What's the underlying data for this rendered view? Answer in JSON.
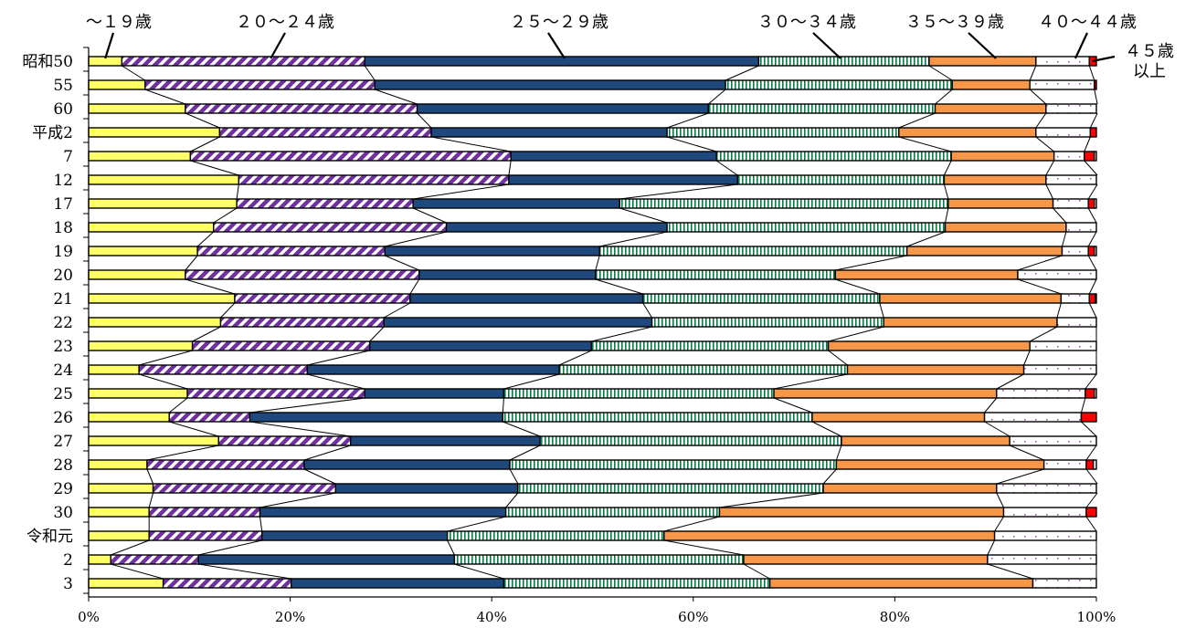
{
  "chart_data": {
    "type": "bar",
    "orientation": "horizontal",
    "stacked": "percent",
    "categories": [
      "昭和50",
      "55",
      "60",
      "平成2",
      "7",
      "12",
      "17",
      "18",
      "19",
      "20",
      "21",
      "22",
      "23",
      "24",
      "25",
      "26",
      "27",
      "28",
      "29",
      "30",
      "令和元",
      "2",
      "3"
    ],
    "series": [
      {
        "name": "～１９歳",
        "color": "#ffff66",
        "pattern": "solid",
        "values": [
          3.3,
          5.6,
          9.6,
          13.0,
          10.1,
          14.9,
          14.7,
          12.4,
          10.8,
          9.6,
          14.5,
          13.1,
          10.3,
          5.0,
          9.8,
          8.0,
          12.9,
          5.8,
          6.4,
          6.0,
          6.0,
          2.2,
          7.4
        ]
      },
      {
        "name": "２０～２４歳",
        "color": "#7030a0",
        "pattern": "diagonal-stripes",
        "values": [
          24.1,
          22.8,
          23.0,
          21.0,
          31.8,
          26.8,
          17.5,
          23.1,
          18.6,
          23.2,
          17.4,
          16.2,
          17.6,
          16.7,
          17.6,
          8.0,
          13.1,
          15.6,
          18.1,
          11.0,
          11.2,
          8.7,
          12.7
        ]
      },
      {
        "name": "２５～２９歳",
        "color": "#1f497d",
        "pattern": "solid",
        "values": [
          39.1,
          34.8,
          28.9,
          23.4,
          20.4,
          22.7,
          20.5,
          21.9,
          21.3,
          17.5,
          23.1,
          26.6,
          22.0,
          25.0,
          13.8,
          25.1,
          18.8,
          20.4,
          18.1,
          24.4,
          18.4,
          25.4,
          21.1
        ]
      },
      {
        "name": "３０～３４歳",
        "color": "#008040",
        "pattern": "vertical-stripes",
        "values": [
          16.9,
          22.5,
          22.5,
          23.0,
          23.3,
          20.5,
          32.6,
          27.6,
          30.5,
          23.8,
          23.5,
          23.0,
          23.5,
          28.6,
          26.8,
          30.7,
          29.9,
          32.4,
          30.3,
          21.2,
          21.5,
          28.7,
          26.4
        ]
      },
      {
        "name": "３５～３９歳",
        "color": "#f79646",
        "pattern": "solid",
        "values": [
          10.6,
          7.7,
          11.0,
          13.6,
          10.2,
          10.1,
          10.4,
          12.0,
          15.4,
          18.1,
          18.0,
          17.2,
          20.0,
          17.5,
          22.1,
          17.1,
          16.7,
          20.6,
          17.2,
          28.2,
          32.8,
          24.2,
          26.1
        ]
      },
      {
        "name": "４０～４４歳",
        "color": "#c080c0",
        "pattern": "dots",
        "values": [
          5.3,
          6.4,
          5.1,
          5.4,
          3.0,
          5.1,
          3.5,
          3.0,
          2.6,
          7.8,
          2.8,
          3.9,
          6.6,
          7.2,
          8.8,
          9.6,
          8.6,
          4.2,
          10.0,
          8.2,
          10.1,
          10.8,
          6.3
        ]
      },
      {
        "name": "４５歳\n以上",
        "color": "#ff0000",
        "pattern": "solid",
        "values": [
          0.7,
          0.2,
          0,
          0.6,
          1.0,
          0,
          0.6,
          0,
          0.6,
          0,
          0.6,
          0,
          0,
          0,
          0.9,
          1.5,
          0,
          0.7,
          0,
          1.0,
          0,
          0,
          0
        ]
      }
    ],
    "xlim": [
      0,
      100
    ],
    "x_ticks": [
      "0%",
      "20%",
      "40%",
      "60%",
      "80%",
      "100%"
    ],
    "legend": "top-callouts",
    "grid": false,
    "connector_lines": true
  }
}
